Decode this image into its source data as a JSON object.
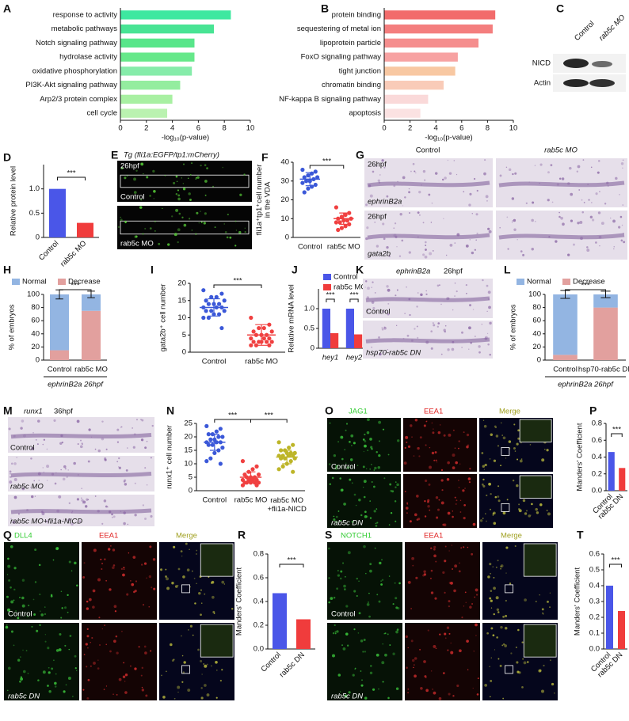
{
  "chart_data": [
    {
      "type": "barh",
      "panel": "A",
      "categories": [
        "response to activity",
        "metabolic pathways",
        "Notch signaling pathway",
        "hydrolase activity",
        "oxidative phosphorylation",
        "PI3K-Akt signaling pathway",
        "Arp2/3 protein complex",
        "cell cycle"
      ],
      "values": [
        8.5,
        7.2,
        5.7,
        5.7,
        5.5,
        4.6,
        4.0,
        3.6
      ],
      "colors": [
        "#3ee8a0",
        "#48e494",
        "#58e68a",
        "#66e88a",
        "#86ecaa",
        "#94ed9f",
        "#a8f0a2",
        "#baf2b0"
      ],
      "xlim": [
        0,
        10
      ],
      "xticks": [
        0,
        2,
        4,
        6,
        8,
        10
      ],
      "xlabel": "-log₁₀(p-value)"
    },
    {
      "type": "barh",
      "panel": "B",
      "categories": [
        "protein binding",
        "sequestering of metal ion",
        "lipoprotein particle",
        "FoxO signaling pathway",
        "tight junction",
        "chromatin binding",
        "NF-kappa B signaling pathway",
        "apoptosis"
      ],
      "values": [
        8.6,
        8.4,
        7.3,
        5.7,
        5.5,
        4.6,
        3.4,
        2.8
      ],
      "colors": [
        "#f26b6b",
        "#f47e7e",
        "#f58e8e",
        "#f7a2a2",
        "#f8c8a2",
        "#f9cbb8",
        "#fad9d9",
        "#fbe2e2"
      ],
      "xlim": [
        0,
        10
      ],
      "xticks": [
        0,
        2,
        4,
        6,
        8,
        10
      ],
      "xlabel": "-log₁₀(p-value)"
    },
    {
      "type": "bar",
      "panel": "D",
      "categories": [
        "Control",
        "rab5c MO"
      ],
      "values": [
        1,
        0.3
      ],
      "errors": [
        null,
        0.08
      ],
      "colors": [
        "#4a56e8",
        "#f03c3c"
      ],
      "ylim": [
        0,
        1.5
      ],
      "yticks": [
        0,
        0.5,
        {
          "value": 1,
          "label": "1.0"
        }
      ],
      "ylabel": "Relative protein level",
      "significance": [
        "***"
      ]
    },
    {
      "type": "dot",
      "panel": "F",
      "categories": [
        "Control",
        "rab5c MO"
      ],
      "groups": [
        {
          "values": [
            36,
            35,
            34,
            33,
            32,
            32,
            31,
            30,
            30,
            29,
            28,
            27,
            26,
            24
          ],
          "mean": 31,
          "sd": 3.5,
          "color": "#3b58d8"
        },
        {
          "values": [
            16,
            13,
            12,
            11,
            10,
            10,
            9,
            9,
            8,
            8,
            7,
            6,
            5,
            4
          ],
          "mean": 10,
          "sd": 3,
          "color": "#f04040"
        }
      ],
      "ylim": [
        0,
        40
      ],
      "yticks": [
        0,
        10,
        20,
        30,
        40
      ],
      "ylabel": "fli1a⁺tp1⁺cell number\nin the VDA",
      "significance": [
        "***"
      ]
    },
    {
      "type": "stacked",
      "panel": "H",
      "categories": [
        "Control",
        "rab5c MO"
      ],
      "series": [
        {
          "name": "Normal",
          "color": "#93b5e2",
          "values": [
            85,
            25
          ],
          "errors": [
            7,
            5
          ]
        },
        {
          "name": "Decrease",
          "color": "#e2a09e",
          "values": [
            15,
            75
          ]
        }
      ],
      "ylim": [
        0,
        100
      ],
      "yticks": [
        0,
        20,
        40,
        60,
        80,
        100
      ],
      "ylabel": "% of embryos",
      "xlabel": "ephrinB2a 26hpf",
      "significance": [
        "***"
      ]
    },
    {
      "type": "dot",
      "panel": "I",
      "categories": [
        "Control",
        "rab5c MO"
      ],
      "groups": [
        {
          "values": [
            18,
            17,
            16,
            16,
            15,
            15,
            14,
            14,
            14,
            13,
            13,
            13,
            12,
            12,
            12,
            11,
            11,
            10,
            10,
            7
          ],
          "mean": 13,
          "sd": 2.5,
          "color": "#3b58d8"
        },
        {
          "values": [
            10,
            8,
            7,
            7,
            6,
            6,
            5,
            5,
            5,
            4,
            4,
            4,
            3,
            3,
            3,
            3,
            3,
            2,
            2,
            2
          ],
          "mean": 5,
          "sd": 3,
          "color": "#f04040"
        }
      ],
      "ylim": [
        0,
        20
      ],
      "yticks": [
        0,
        5,
        10,
        15,
        20
      ],
      "ylabel": "gata2b⁺ cell number",
      "significance": [
        "***"
      ]
    },
    {
      "type": "grouped",
      "panel": "J",
      "categories": [
        "hey1",
        "hey2"
      ],
      "series": [
        {
          "name": "Control",
          "color": "#4a56e8",
          "values": [
            1,
            1
          ],
          "errors": [
            null,
            null
          ]
        },
        {
          "name": "rab5c MO",
          "color": "#f03c3c",
          "values": [
            0.38,
            0.35
          ],
          "errors": [
            0.1,
            0.15
          ]
        }
      ],
      "ylim": [
        0,
        1.5
      ],
      "yticks": [
        0,
        0.5,
        {
          "value": 1,
          "label": "1.0"
        }
      ],
      "ylabel": "Relative mRNA level",
      "significance": [
        "***",
        "***"
      ]
    },
    {
      "type": "stacked",
      "panel": "L",
      "categories": [
        "Control",
        "hsp70-rab5c DN"
      ],
      "series": [
        {
          "name": "Normal",
          "color": "#93b5e2",
          "values": [
            92,
            20
          ],
          "errors": [
            6,
            5
          ]
        },
        {
          "name": "Decrease",
          "color": "#e2a09e",
          "values": [
            8,
            80
          ]
        }
      ],
      "ylim": [
        0,
        100
      ],
      "yticks": [
        0,
        20,
        40,
        60,
        80,
        100
      ],
      "ylabel": "% of embryos",
      "xlabel": "ephrinB2a 26hpf",
      "significance": [
        "***"
      ]
    },
    {
      "type": "dot",
      "panel": "N",
      "categories": [
        "Control",
        "rab5c MO",
        "rab5c MO\n+fli1a-NICD"
      ],
      "groups": [
        {
          "values": [
            24,
            23,
            22,
            21,
            21,
            20,
            20,
            19,
            19,
            18,
            18,
            18,
            17,
            17,
            16,
            15,
            14,
            12,
            11,
            10
          ],
          "mean": 18,
          "sd": 3,
          "color": "#3b58d8"
        },
        {
          "values": [
            11,
            9,
            8,
            7,
            6,
            6,
            5,
            5,
            5,
            4,
            4,
            4,
            4,
            3,
            3,
            3,
            3,
            3,
            2,
            2
          ],
          "mean": 5,
          "sd": 2,
          "color": "#f04040"
        },
        {
          "values": [
            18,
            17,
            16,
            15,
            15,
            14,
            14,
            14,
            13,
            13,
            13,
            13,
            12,
            12,
            12,
            11,
            10,
            9,
            8,
            7
          ],
          "mean": 12.5,
          "sd": 2.5,
          "color": "#bdb528"
        }
      ],
      "ylim": [
        0,
        25
      ],
      "yticks": [
        0,
        5,
        10,
        15,
        20,
        25
      ],
      "ylabel": "runx1⁺ cell number",
      "significance": [
        "***",
        "***"
      ]
    },
    {
      "type": "bar",
      "panel": "P",
      "categories": [
        "Control",
        "rab5c DN"
      ],
      "values": [
        0.46,
        0.27
      ],
      "errors": [
        0.09,
        0.07
      ],
      "colors": [
        "#4a56e8",
        "#f03c3c"
      ],
      "ylim": [
        0,
        0.8
      ],
      "yticks": [
        {
          "value": 0,
          "label": "0.0"
        },
        0.2,
        0.4,
        0.6,
        0.8
      ],
      "ylabel": "Manders' Coefficient",
      "significance": [
        "***"
      ]
    },
    {
      "type": "bar",
      "panel": "R",
      "categories": [
        "Control",
        "rab5c DN"
      ],
      "values": [
        0.47,
        0.25
      ],
      "errors": [
        0.14,
        0.07
      ],
      "colors": [
        "#4a56e8",
        "#f03c3c"
      ],
      "ylim": [
        0,
        0.8
      ],
      "yticks": [
        {
          "value": 0,
          "label": "0.0"
        },
        0.2,
        0.4,
        0.6,
        0.8
      ],
      "ylabel": "Manders' Coefficient",
      "significance": [
        "***"
      ]
    },
    {
      "type": "bar",
      "panel": "T",
      "categories": [
        "Control",
        "rab5c DN"
      ],
      "values": [
        0.4,
        0.24
      ],
      "errors": [
        0.05,
        0.05
      ],
      "colors": [
        "#4a56e8",
        "#f03c3c"
      ],
      "ylim": [
        0,
        0.6
      ],
      "yticks": [
        {
          "value": 0,
          "label": "0.0"
        },
        0.1,
        0.2,
        0.3,
        0.4,
        0.5,
        0.6
      ],
      "ylabel": "Manders' Coefficient",
      "significance": [
        "***"
      ]
    }
  ],
  "figure_panels": [
    {
      "panel": "C",
      "labels": [
        "Control",
        "rab5c MO",
        "NICD",
        "Actin"
      ]
    },
    {
      "panel": "E",
      "labels": [
        "Tg (fli1a:EGFP/tp1:mCherry)",
        "26hpf",
        "Control",
        "rab5c MO"
      ]
    },
    {
      "panel": "G",
      "labels": [
        "Control",
        "rab5c MO",
        "26hpf",
        "ephrinB2a",
        "26hpf",
        "gata2b"
      ]
    },
    {
      "panel": "K",
      "labels": [
        "ephrinB2a",
        "26hpf",
        "Control",
        "hsp70-rab5c DN"
      ]
    },
    {
      "panel": "M",
      "labels": [
        "runx1",
        "36hpf",
        "Control",
        "rab5c MO",
        "rab5c MO+fli1a-NICD"
      ]
    },
    {
      "panel": "O",
      "labels": [
        "JAG1",
        "EEA1",
        "Merge",
        "Control",
        "rab5c DN"
      ]
    },
    {
      "panel": "Q",
      "labels": [
        "DLL4",
        "EEA1",
        "Merge",
        "Control",
        "rab5c DN"
      ]
    },
    {
      "panel": "S",
      "labels": [
        "NOTCH1",
        "EEA1",
        "Merge",
        "Control",
        "rab5c DN"
      ]
    }
  ]
}
